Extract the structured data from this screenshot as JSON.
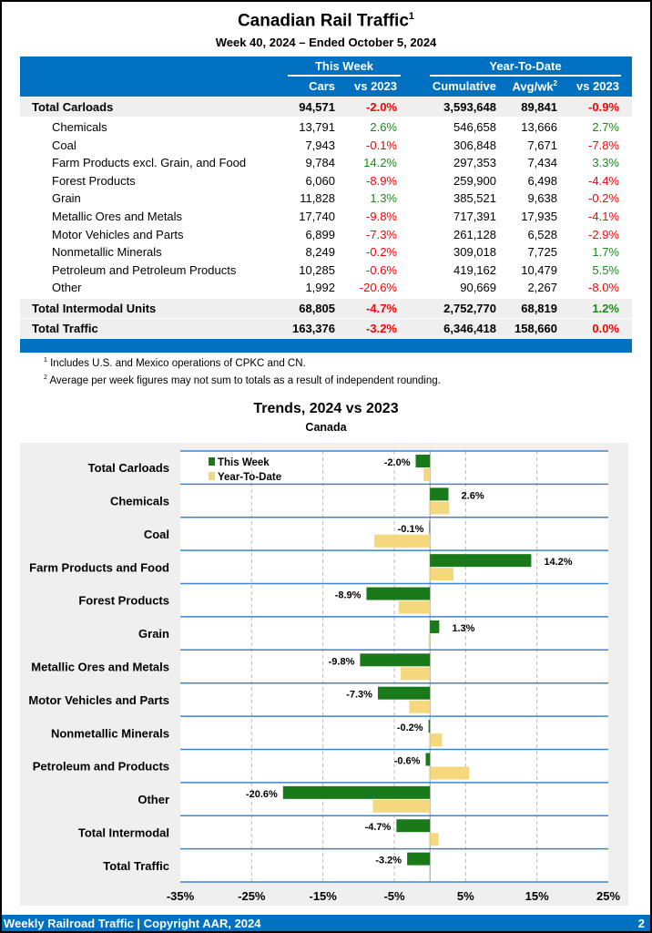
{
  "header": {
    "title": "Canadian Rail Traffic",
    "title_sup": "1",
    "subtitle": "Week 40, 2024 – Ended October 5, 2024"
  },
  "table": {
    "group_this_week": "This Week",
    "group_ytd": "Year-To-Date",
    "columns": [
      "Cars",
      "vs 2023",
      "Cumulative",
      "Avg/wk",
      "vs 2023"
    ],
    "avg_sup": "2",
    "rows": [
      {
        "label": "Total Carloads",
        "total": true,
        "cells": [
          "94,571",
          "-2.0%",
          "3,593,648",
          "89,841",
          "-0.9%"
        ]
      },
      {
        "label": "Chemicals",
        "cells": [
          "13,791",
          "2.6%",
          "546,658",
          "13,666",
          "2.7%"
        ]
      },
      {
        "label": "Coal",
        "cells": [
          "7,943",
          "-0.1%",
          "306,848",
          "7,671",
          "-7.8%"
        ]
      },
      {
        "label": "Farm Products excl. Grain, and Food",
        "cells": [
          "9,784",
          "14.2%",
          "297,353",
          "7,434",
          "3.3%"
        ]
      },
      {
        "label": "Forest Products",
        "cells": [
          "6,060",
          "-8.9%",
          "259,900",
          "6,498",
          "-4.4%"
        ]
      },
      {
        "label": "Grain",
        "cells": [
          "11,828",
          "1.3%",
          "385,521",
          "9,638",
          "-0.2%"
        ]
      },
      {
        "label": "Metallic Ores and Metals",
        "cells": [
          "17,740",
          "-9.8%",
          "717,391",
          "17,935",
          "-4.1%"
        ]
      },
      {
        "label": "Motor Vehicles and Parts",
        "cells": [
          "6,899",
          "-7.3%",
          "261,128",
          "6,528",
          "-2.9%"
        ]
      },
      {
        "label": "Nonmetallic Minerals",
        "cells": [
          "8,249",
          "-0.2%",
          "309,018",
          "7,725",
          "1.7%"
        ]
      },
      {
        "label": "Petroleum and Petroleum Products",
        "cells": [
          "10,285",
          "-0.6%",
          "419,162",
          "10,479",
          "5.5%"
        ]
      },
      {
        "label": "Other",
        "cells": [
          "1,992",
          "-20.6%",
          "90,669",
          "2,267",
          "-8.0%"
        ]
      },
      {
        "label": "Total Intermodal Units",
        "total": true,
        "cells": [
          "68,805",
          "-4.7%",
          "2,752,770",
          "68,819",
          "1.2%"
        ]
      },
      {
        "label": "Total Traffic",
        "total": true,
        "cells": [
          "163,376",
          "-3.2%",
          "6,346,418",
          "158,660",
          "0.0%"
        ]
      }
    ]
  },
  "footnotes": [
    {
      "sup": "1",
      "text": "Includes U.S. and Mexico operations of CPKC and CN."
    },
    {
      "sup": "2",
      "text": "Average per week figures may not sum to totals as a result of independent rounding."
    }
  ],
  "chart_data": {
    "type": "bar",
    "orientation": "horizontal",
    "title": "Trends, 2024 vs 2023",
    "subtitle": "Canada",
    "categories": [
      "Total Carloads",
      "Chemicals",
      "Coal",
      "Farm Products and Food",
      "Forest Products",
      "Grain",
      "Metallic Ores and Metals",
      "Motor Vehicles and Parts",
      "Nonmetallic Minerals",
      "Petroleum and Products",
      "Other",
      "Total Intermodal",
      "Total Traffic"
    ],
    "series": [
      {
        "name": "This Week",
        "color": "#1a7a1a",
        "values": [
          -2.0,
          2.6,
          -0.1,
          14.2,
          -8.9,
          1.3,
          -9.8,
          -7.3,
          -0.2,
          -0.6,
          -20.6,
          -4.7,
          -3.2
        ],
        "labels": [
          "-2.0%",
          "2.6%",
          "-0.1%",
          "14.2%",
          "-8.9%",
          "1.3%",
          "-9.8%",
          "-7.3%",
          "-0.2%",
          "-0.6%",
          "-20.6%",
          "-4.7%",
          "-3.2%"
        ]
      },
      {
        "name": "Year-To-Date",
        "color": "#f5d77e",
        "values": [
          -0.9,
          2.7,
          -7.8,
          3.3,
          -4.4,
          -0.2,
          -4.1,
          -2.9,
          1.7,
          5.5,
          -8.0,
          1.2,
          0.0
        ]
      }
    ],
    "xlim": [
      -35,
      25
    ],
    "xticks": [
      "-35%",
      "-25%",
      "-15%",
      "-5%",
      "5%",
      "15%",
      "25%"
    ],
    "xtick_values": [
      -35,
      -25,
      -15,
      -5,
      5,
      15,
      25
    ],
    "grid": true,
    "legend": "top-left"
  },
  "footer": {
    "left": "Weekly Railroad Traffic | Copyright AAR, 2024",
    "page": "2"
  }
}
